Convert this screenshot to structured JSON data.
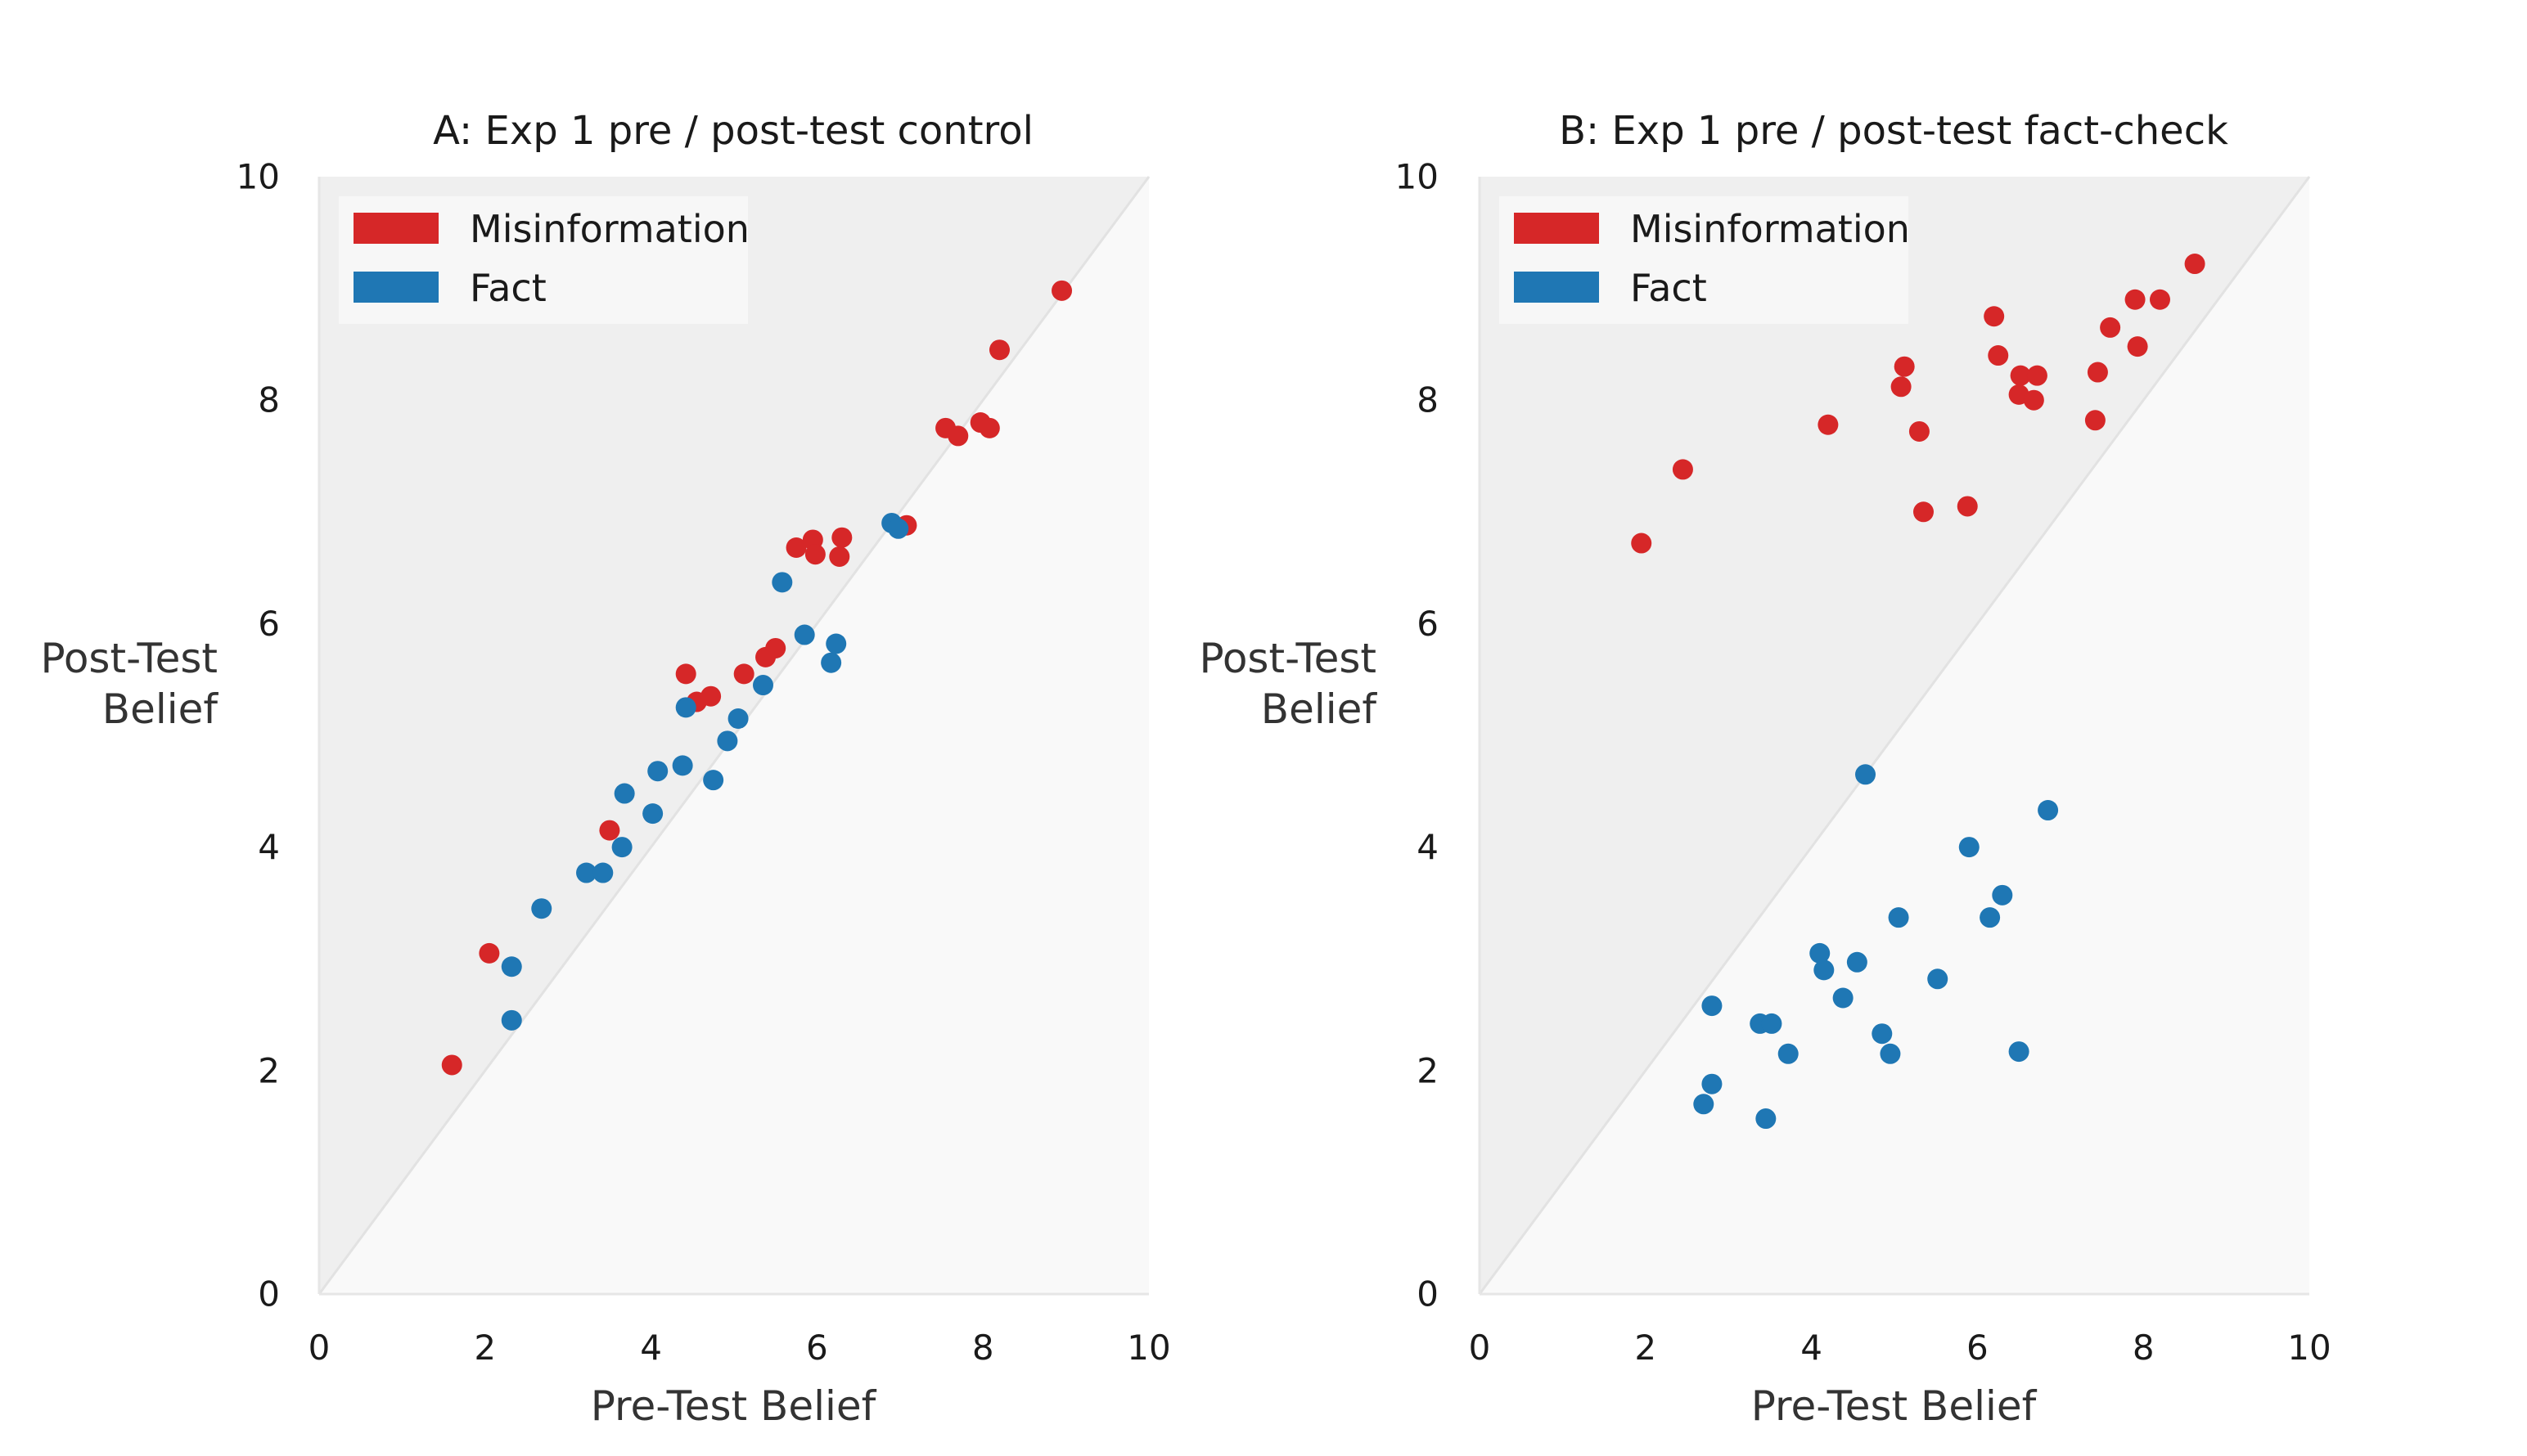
{
  "colors": {
    "misinformation": "#d62728",
    "fact": "#1f77b4",
    "upper_region": "#efefef",
    "lower_region": "#f9f9f9",
    "diagonal": "#e2e2e2"
  },
  "chart_data": [
    {
      "type": "scatter",
      "title": "A: Exp 1 pre / post-test control",
      "xlabel": "Pre-Test Belief",
      "ylabel": [
        "Post-Test",
        "Belief"
      ],
      "xlim": [
        0,
        10
      ],
      "ylim": [
        0,
        10
      ],
      "xticks": [
        "0",
        "2",
        "4",
        "6",
        "8",
        "10"
      ],
      "yticks": [
        "0",
        "2",
        "4",
        "6",
        "8",
        "10"
      ],
      "grid": false,
      "legend_position": "top-left",
      "reference_line": "y = x",
      "series": [
        {
          "name": "Misinformation",
          "color_key": "misinformation",
          "points": [
            [
              1.6,
              2.05
            ],
            [
              2.05,
              3.05
            ],
            [
              3.5,
              4.15
            ],
            [
              4.42,
              5.55
            ],
            [
              4.55,
              5.3
            ],
            [
              4.72,
              5.35
            ],
            [
              5.12,
              5.55
            ],
            [
              5.38,
              5.7
            ],
            [
              5.5,
              5.78
            ],
            [
              5.75,
              6.68
            ],
            [
              5.95,
              6.75
            ],
            [
              5.98,
              6.62
            ],
            [
              6.27,
              6.6
            ],
            [
              6.3,
              6.77
            ],
            [
              7.08,
              6.88
            ],
            [
              7.55,
              7.75
            ],
            [
              7.7,
              7.68
            ],
            [
              7.97,
              7.8
            ],
            [
              8.08,
              7.75
            ],
            [
              8.2,
              8.45
            ],
            [
              8.95,
              8.98
            ]
          ]
        },
        {
          "name": "Fact",
          "color_key": "fact",
          "points": [
            [
              2.32,
              2.45
            ],
            [
              2.32,
              2.93
            ],
            [
              2.68,
              3.45
            ],
            [
              3.22,
              3.77
            ],
            [
              3.42,
              3.77
            ],
            [
              3.65,
              4.0
            ],
            [
              3.68,
              4.48
            ],
            [
              4.02,
              4.3
            ],
            [
              4.08,
              4.68
            ],
            [
              4.38,
              4.73
            ],
            [
              4.42,
              5.25
            ],
            [
              4.75,
              4.6
            ],
            [
              4.92,
              4.95
            ],
            [
              5.05,
              5.15
            ],
            [
              5.35,
              5.45
            ],
            [
              5.58,
              6.37
            ],
            [
              5.85,
              5.9
            ],
            [
              6.17,
              5.65
            ],
            [
              6.23,
              5.82
            ],
            [
              6.9,
              6.9
            ],
            [
              6.98,
              6.85
            ]
          ]
        }
      ]
    },
    {
      "type": "scatter",
      "title": "B: Exp 1 pre / post-test fact-check",
      "xlabel": "Pre-Test Belief",
      "ylabel": [
        "Post-Test",
        "Belief"
      ],
      "xlim": [
        0,
        10
      ],
      "ylim": [
        0,
        10
      ],
      "xticks": [
        "0",
        "2",
        "4",
        "6",
        "8",
        "10"
      ],
      "yticks": [
        "0",
        "2",
        "4",
        "6",
        "8",
        "10"
      ],
      "grid": false,
      "legend_position": "top-left",
      "reference_line": "y = x",
      "series": [
        {
          "name": "Misinformation",
          "color_key": "misinformation",
          "points": [
            [
              1.95,
              6.72
            ],
            [
              2.45,
              7.38
            ],
            [
              4.2,
              7.78
            ],
            [
              5.08,
              8.12
            ],
            [
              5.12,
              8.3
            ],
            [
              5.3,
              7.72
            ],
            [
              5.35,
              7.0
            ],
            [
              5.88,
              7.05
            ],
            [
              6.2,
              8.75
            ],
            [
              6.25,
              8.4
            ],
            [
              6.5,
              8.05
            ],
            [
              6.52,
              8.22
            ],
            [
              6.68,
              8.0
            ],
            [
              6.72,
              8.22
            ],
            [
              7.42,
              7.82
            ],
            [
              7.45,
              8.25
            ],
            [
              7.6,
              8.65
            ],
            [
              7.9,
              8.9
            ],
            [
              7.93,
              8.48
            ],
            [
              8.2,
              8.9
            ],
            [
              8.62,
              9.22
            ]
          ]
        },
        {
          "name": "Fact",
          "color_key": "fact",
          "points": [
            [
              2.7,
              1.7
            ],
            [
              2.8,
              1.88
            ],
            [
              2.8,
              2.58
            ],
            [
              3.38,
              2.42
            ],
            [
              3.45,
              1.57
            ],
            [
              3.52,
              2.42
            ],
            [
              3.72,
              2.15
            ],
            [
              4.1,
              3.05
            ],
            [
              4.15,
              2.9
            ],
            [
              4.38,
              2.65
            ],
            [
              4.55,
              2.97
            ],
            [
              4.65,
              4.65
            ],
            [
              4.85,
              2.33
            ],
            [
              4.95,
              2.15
            ],
            [
              5.05,
              3.37
            ],
            [
              5.52,
              2.82
            ],
            [
              5.9,
              4.0
            ],
            [
              6.15,
              3.37
            ],
            [
              6.3,
              3.57
            ],
            [
              6.5,
              2.17
            ],
            [
              6.85,
              4.33
            ]
          ]
        }
      ]
    }
  ]
}
